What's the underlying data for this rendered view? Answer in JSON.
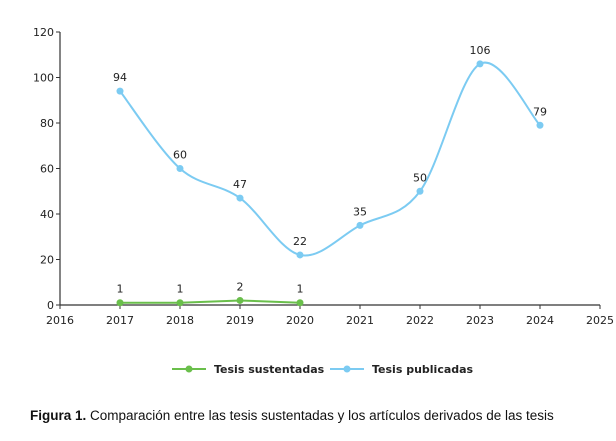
{
  "chart_data": {
    "type": "line",
    "x": [
      2017,
      2018,
      2019,
      2020,
      2021,
      2022,
      2023,
      2024
    ],
    "xlim": [
      2016,
      2025
    ],
    "xticks": [
      2016,
      2017,
      2018,
      2019,
      2020,
      2021,
      2022,
      2023,
      2024,
      2025
    ],
    "ylim": [
      0,
      120
    ],
    "yticks": [
      0,
      20,
      40,
      60,
      80,
      100,
      120
    ],
    "grid": false,
    "legend_position": "bottom",
    "series": [
      {
        "name": "Tesis sustentadas",
        "color": "#6abf4b",
        "x": [
          2017,
          2018,
          2019,
          2020
        ],
        "values": [
          1,
          1,
          2,
          1
        ],
        "smooth": false
      },
      {
        "name": "Tesis publicadas",
        "color": "#7ccbf2",
        "x": [
          2017,
          2018,
          2019,
          2020,
          2021,
          2022,
          2023,
          2024
        ],
        "values": [
          94,
          60,
          47,
          22,
          35,
          50,
          106,
          79
        ],
        "smooth": true
      }
    ]
  },
  "caption": {
    "label": "Figura 1.",
    "text": " Comparación entre las tesis sustentadas y los artículos derivados de las tesis"
  }
}
